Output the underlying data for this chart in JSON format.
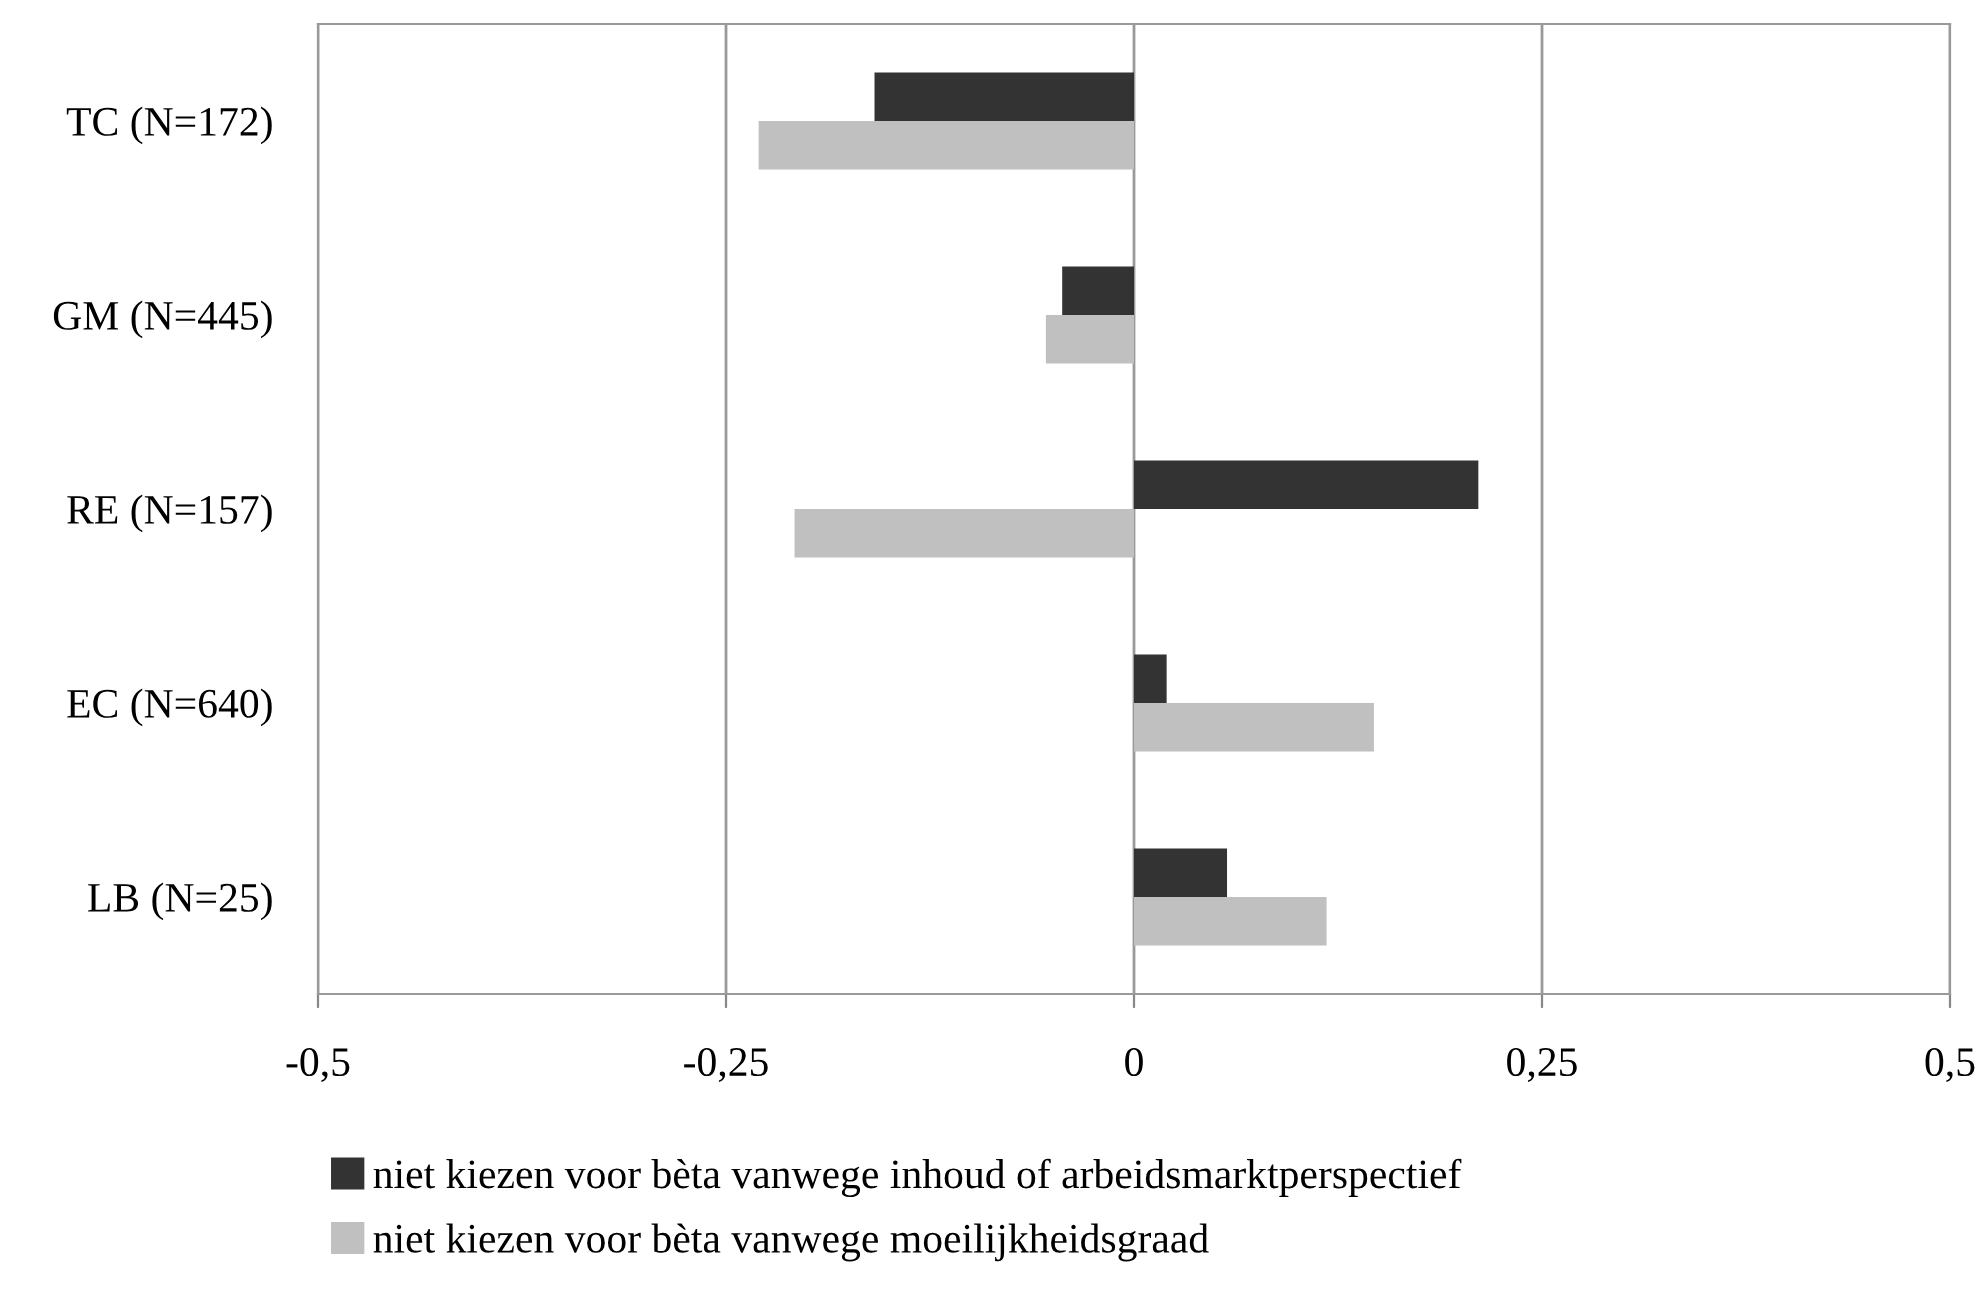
{
  "chart_data": {
    "type": "bar",
    "orientation": "horizontal",
    "categories": [
      "TC (N=172)",
      "GM (N=445)",
      "RE (N=157)",
      "EC (N=640)",
      "LB (N=25)"
    ],
    "series": [
      {
        "name": "niet kiezen voor bèta vanwege inhoud of arbeidsmarktperspectief",
        "color": "#333333",
        "values": [
          -0.159,
          -0.044,
          0.211,
          0.02,
          0.057
        ]
      },
      {
        "name": "niet kiezen voor bèta vanwege moeilijkheidsgraad",
        "color": "#c0c0c0",
        "values": [
          -0.23,
          -0.054,
          -0.208,
          0.147,
          0.118
        ]
      }
    ],
    "xlim": [
      -0.5,
      0.5
    ],
    "xticks": [
      {
        "value": -0.5,
        "label": "-0,5"
      },
      {
        "value": -0.25,
        "label": "-0,25"
      },
      {
        "value": 0,
        "label": "0"
      },
      {
        "value": 0.25,
        "label": "0,25"
      },
      {
        "value": 0.5,
        "label": "0,5"
      }
    ],
    "grid": "x",
    "legend": "bottom"
  }
}
